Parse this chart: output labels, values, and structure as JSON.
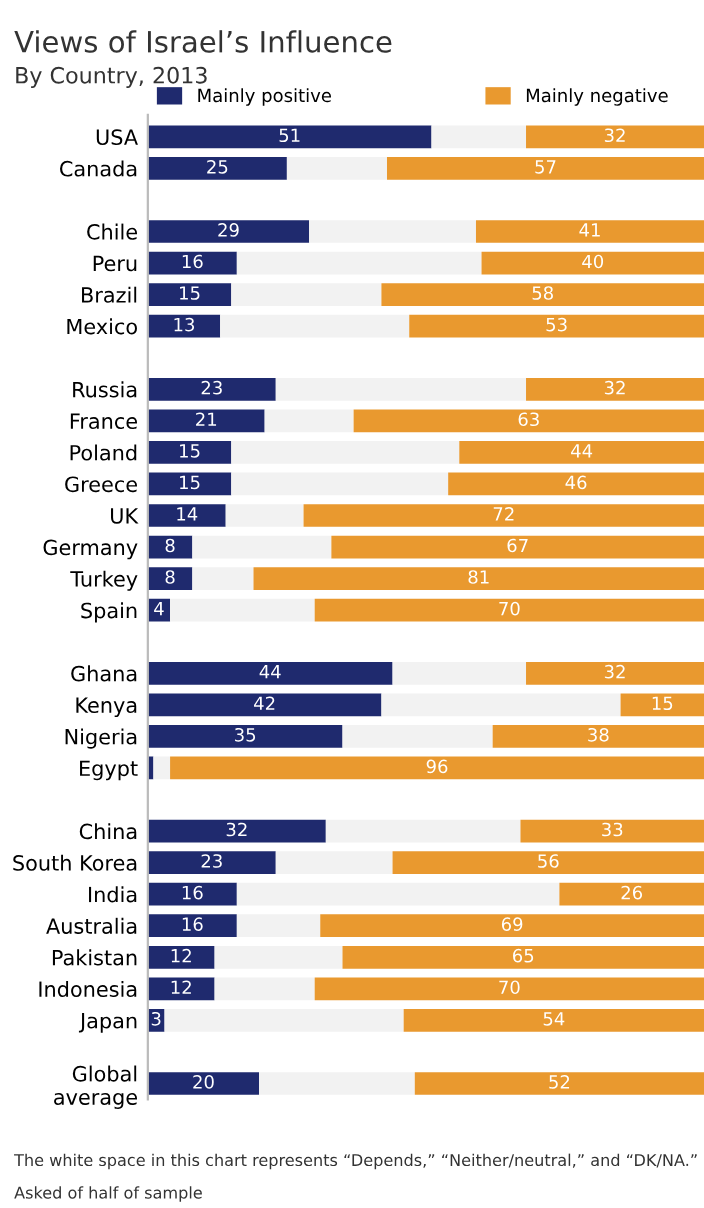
{
  "chart_data": {
    "type": "bar",
    "orientation": "horizontal",
    "title": "Views of Israel’s Influence",
    "subtitle": "By Country, 2013",
    "categories": [
      "USA",
      "Canada",
      null,
      "Chile",
      "Peru",
      "Brazil",
      "Mexico",
      null,
      "Russia",
      "France",
      "Poland",
      "Greece",
      "UK",
      "Germany",
      "Turkey",
      "Spain",
      null,
      "Ghana",
      "Kenya",
      "Nigeria",
      "Egypt",
      null,
      "China",
      "South Korea",
      "India",
      "Australia",
      "Pakistan",
      "Indonesia",
      "Japan",
      null,
      "Global\naverage"
    ],
    "stacked": true,
    "series": [
      {
        "name": "Mainly positive",
        "color": "#1f2a6e",
        "values": [
          51,
          25,
          null,
          29,
          16,
          15,
          13,
          null,
          23,
          21,
          15,
          15,
          14,
          8,
          8,
          4,
          null,
          44,
          42,
          35,
          1,
          null,
          32,
          23,
          16,
          16,
          12,
          12,
          3,
          null,
          20
        ],
        "value_labels": [
          "51",
          "25",
          null,
          "29",
          "16",
          "15",
          "13",
          null,
          "23",
          "21",
          "15",
          "15",
          "14",
          "8",
          "8",
          "4",
          null,
          "44",
          "42",
          "35",
          null,
          null,
          "32",
          "23",
          "16",
          "16",
          "12",
          "12",
          "3",
          null,
          "20"
        ]
      },
      {
        "color": "#f2f2f2",
        "values": [
          17,
          18,
          null,
          30,
          44,
          27,
          34,
          null,
          45,
          16,
          41,
          39,
          14,
          25,
          11,
          26,
          null,
          24,
          43,
          27,
          3,
          null,
          35,
          21,
          58,
          15,
          23,
          18,
          43,
          null,
          28
        ]
      },
      {
        "name": "Mainly negative",
        "color": "#e9992f",
        "values": [
          32,
          57,
          null,
          41,
          40,
          58,
          53,
          null,
          32,
          63,
          44,
          46,
          72,
          67,
          81,
          70,
          null,
          32,
          15,
          38,
          96,
          null,
          33,
          56,
          26,
          69,
          65,
          70,
          54,
          null,
          52
        ],
        "value_labels": [
          "32",
          "57",
          null,
          "41",
          "40",
          "58",
          "53",
          null,
          "32",
          "63",
          "44",
          "46",
          "72",
          "67",
          "81",
          "70",
          null,
          "32",
          "15",
          "38",
          "96",
          null,
          "33",
          "56",
          "26",
          "69",
          "65",
          "70",
          "54",
          null,
          "52"
        ]
      }
    ],
    "xlim": [
      0,
      100
    ],
    "tick_labels": "y",
    "grid": false,
    "legend": "top",
    "annotations": [
      "The white space in this chart represents “Depends,” “Neither/neutral,” and “DK/NA.”",
      "Asked of half of sample"
    ]
  }
}
